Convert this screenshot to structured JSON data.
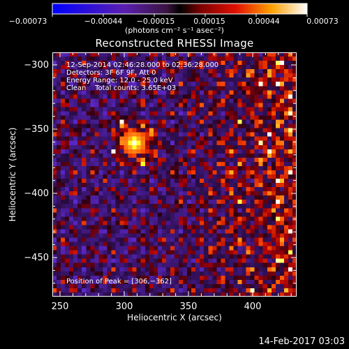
{
  "colorbar": {
    "ticks": [
      "−0.00073",
      "−0.00044",
      "−0.00015",
      "0.00015",
      "0.00044",
      "0.00073"
    ],
    "units_label": "(photons cm⁻² s⁻¹ asec⁻²)",
    "range": [
      -0.00073,
      0.00073
    ]
  },
  "title": "Reconstructed RHESSI Image",
  "overlay": {
    "time_range": "12-Sep-2014 02:46:28.000 to 02:36:28.000",
    "detectors": "Detectors: 3F 6F 9F, Att 0",
    "energy_range": "Energy Range: 12.0 - 25.0 keV",
    "clean_counts": "Clean    Total counts: 3.65E+03",
    "peak": "Position of Peak = [306,−362]"
  },
  "axes": {
    "x_label": "Heliocentric X (arcsec)",
    "y_label": "Heliocentric Y (arcsec)",
    "x_ticks": [
      "250",
      "300",
      "350",
      "400"
    ],
    "y_ticks": [
      "−300",
      "−350",
      "−400",
      "−450"
    ],
    "x_range": [
      245,
      435
    ],
    "y_range": [
      -480,
      -290
    ]
  },
  "datestamp": "14-Feb-2017 03:03",
  "colors": {
    "background": "#000000",
    "foreground": "#ffffff"
  }
}
